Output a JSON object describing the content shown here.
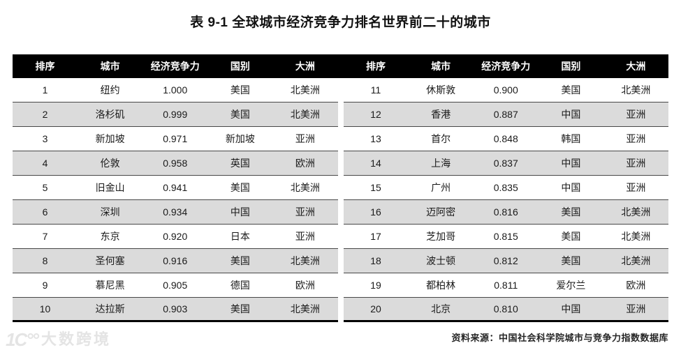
{
  "title": "表 9-1 全球城市经济竞争力排名世界前二十的城市",
  "chart_data": {
    "type": "table",
    "title": "表 9-1 全球城市经济竞争力排名世界前二十的城市",
    "columns": [
      "排序",
      "城市",
      "经济竞争力",
      "国别",
      "大洲"
    ],
    "rows": [
      [
        "1",
        "纽约",
        "1.000",
        "美国",
        "北美洲"
      ],
      [
        "2",
        "洛杉矶",
        "0.999",
        "美国",
        "北美洲"
      ],
      [
        "3",
        "新加坡",
        "0.971",
        "新加坡",
        "亚洲"
      ],
      [
        "4",
        "伦敦",
        "0.958",
        "英国",
        "欧洲"
      ],
      [
        "5",
        "旧金山",
        "0.941",
        "美国",
        "北美洲"
      ],
      [
        "6",
        "深圳",
        "0.934",
        "中国",
        "亚洲"
      ],
      [
        "7",
        "东京",
        "0.920",
        "日本",
        "亚洲"
      ],
      [
        "8",
        "圣何塞",
        "0.916",
        "美国",
        "北美洲"
      ],
      [
        "9",
        "慕尼黑",
        "0.905",
        "德国",
        "欧洲"
      ],
      [
        "10",
        "达拉斯",
        "0.903",
        "美国",
        "北美洲"
      ],
      [
        "11",
        "休斯敦",
        "0.900",
        "美国",
        "北美洲"
      ],
      [
        "12",
        "香港",
        "0.887",
        "中国",
        "亚洲"
      ],
      [
        "13",
        "首尔",
        "0.848",
        "韩国",
        "亚洲"
      ],
      [
        "14",
        "上海",
        "0.837",
        "中国",
        "亚洲"
      ],
      [
        "15",
        "广州",
        "0.835",
        "中国",
        "亚洲"
      ],
      [
        "16",
        "迈阿密",
        "0.816",
        "美国",
        "北美洲"
      ],
      [
        "17",
        "芝加哥",
        "0.815",
        "美国",
        "北美洲"
      ],
      [
        "18",
        "波士顿",
        "0.812",
        "美国",
        "北美洲"
      ],
      [
        "19",
        "都柏林",
        "0.811",
        "爱尔兰",
        "欧洲"
      ],
      [
        "20",
        "北京",
        "0.810",
        "中国",
        "亚洲"
      ]
    ]
  },
  "source_note": "资料来源：中国社会科学院城市与竞争力指数数据库",
  "watermark": {
    "logo_glyph": "1C°°",
    "text": "大数跨境"
  },
  "colors": {
    "header_bg": "#000000",
    "header_text": "#ffffff",
    "row_alt_bg": "#dbdbdb",
    "row_line": "#474747",
    "table_bottom_border": "#000000",
    "text": "#1a1a1a",
    "watermark": "#e4e4e4"
  }
}
